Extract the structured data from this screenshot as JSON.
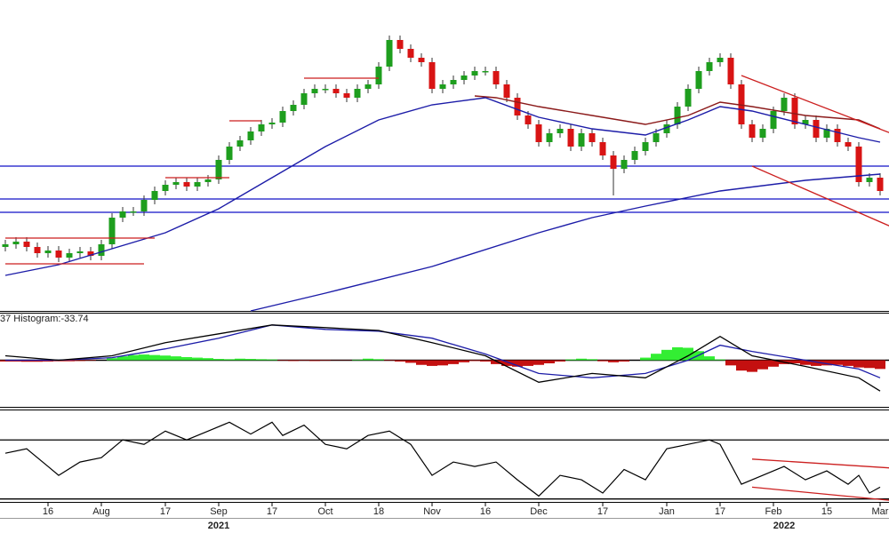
{
  "chart_data": [
    {
      "type": "candlestick",
      "ylim": [
        0,
        350
      ],
      "up_color": "#1e9e1e",
      "down_color": "#d81414",
      "open": [
        72,
        75,
        78,
        72,
        65,
        68,
        60,
        65,
        67,
        62,
        75,
        105,
        112,
        112,
        125,
        135,
        142,
        145,
        140,
        145,
        148,
        170,
        185,
        192,
        202,
        210,
        212,
        225,
        232,
        245,
        250,
        250,
        245,
        240,
        250,
        255,
        275,
        305,
        295,
        285,
        280,
        250,
        255,
        260,
        265,
        270,
        270,
        255,
        240,
        220,
        210,
        190,
        200,
        205,
        185,
        200,
        190,
        175,
        160,
        170,
        180,
        190,
        200,
        210,
        230,
        250,
        270,
        280,
        285,
        255,
        210,
        195,
        205,
        225,
        240,
        210,
        215,
        195,
        205,
        190,
        185,
        145,
        150
      ],
      "high": [
        80,
        83,
        83,
        77,
        73,
        73,
        70,
        72,
        72,
        80,
        110,
        117,
        117,
        130,
        140,
        147,
        150,
        150,
        150,
        153,
        175,
        190,
        197,
        207,
        215,
        217,
        230,
        237,
        250,
        255,
        255,
        255,
        250,
        255,
        260,
        280,
        310,
        310,
        300,
        290,
        285,
        260,
        265,
        270,
        275,
        275,
        275,
        260,
        245,
        225,
        215,
        205,
        210,
        210,
        205,
        205,
        195,
        180,
        175,
        185,
        195,
        205,
        215,
        235,
        255,
        275,
        285,
        290,
        290,
        260,
        215,
        210,
        230,
        245,
        245,
        220,
        220,
        210,
        210,
        195,
        190,
        155,
        155
      ],
      "low": [
        67,
        70,
        67,
        60,
        60,
        55,
        55,
        60,
        57,
        57,
        70,
        100,
        107,
        107,
        120,
        130,
        137,
        135,
        135,
        140,
        143,
        165,
        180,
        187,
        197,
        205,
        207,
        220,
        227,
        240,
        245,
        240,
        235,
        235,
        245,
        250,
        270,
        290,
        280,
        275,
        245,
        245,
        250,
        255,
        260,
        265,
        250,
        235,
        215,
        205,
        185,
        185,
        195,
        180,
        180,
        185,
        170,
        130,
        155,
        165,
        175,
        185,
        195,
        205,
        225,
        245,
        265,
        275,
        250,
        205,
        190,
        190,
        200,
        220,
        205,
        205,
        190,
        190,
        185,
        180,
        140,
        140,
        130
      ],
      "close": [
        75,
        78,
        72,
        65,
        68,
        60,
        65,
        67,
        62,
        75,
        105,
        112,
        112,
        125,
        135,
        142,
        145,
        140,
        145,
        148,
        170,
        185,
        192,
        202,
        210,
        212,
        225,
        232,
        245,
        250,
        250,
        245,
        240,
        250,
        255,
        275,
        305,
        295,
        285,
        280,
        250,
        255,
        260,
        265,
        270,
        270,
        255,
        240,
        220,
        210,
        190,
        200,
        205,
        185,
        200,
        190,
        175,
        160,
        170,
        180,
        190,
        200,
        210,
        230,
        250,
        270,
        280,
        285,
        255,
        210,
        195,
        205,
        225,
        240,
        210,
        215,
        195,
        205,
        190,
        185,
        145,
        150,
        135
      ],
      "moving_averages": [
        {
          "color": "#8b1a1a",
          "x": [
            44,
            46,
            50,
            55,
            60,
            64,
            67,
            70,
            75,
            80,
            82
          ],
          "values": [
            242,
            240,
            230,
            220,
            210,
            220,
            235,
            230,
            220,
            215,
            205
          ]
        },
        {
          "color": "#1c1ca8",
          "x": [
            0,
            5,
            10,
            15,
            20,
            25,
            30,
            35,
            40,
            45,
            50,
            55,
            60,
            64,
            67,
            70,
            75,
            80,
            82
          ],
          "values": [
            40,
            52,
            70,
            88,
            115,
            150,
            185,
            215,
            232,
            240,
            218,
            205,
            198,
            215,
            230,
            225,
            210,
            195,
            190
          ]
        },
        {
          "color": "#1c1ca8",
          "x": [
            23,
            30,
            40,
            50,
            55,
            60,
            67,
            75,
            82
          ],
          "values": [
            0,
            20,
            50,
            88,
            105,
            118,
            135,
            147,
            154
          ]
        }
      ],
      "levels": [
        163,
        126,
        111
      ],
      "level_color": "#1010c8",
      "trendline_color": "#cc1f1f",
      "trendlines": [
        {
          "x": [
            0,
            14
          ],
          "values": [
            82,
            82
          ]
        },
        {
          "x": [
            0,
            13
          ],
          "values": [
            53,
            53
          ]
        },
        {
          "x": [
            15,
            21
          ],
          "values": [
            150,
            150
          ]
        },
        {
          "x": [
            21,
            24
          ],
          "values": [
            214,
            214
          ]
        },
        {
          "x": [
            28,
            35
          ],
          "values": [
            262,
            262
          ]
        },
        {
          "x": [
            69,
            83
          ],
          "values": [
            265,
            200
          ]
        },
        {
          "x": [
            70,
            83
          ],
          "values": [
            163,
            95
          ]
        }
      ]
    },
    {
      "type": "macd",
      "label": "37 Histogram:-33.74",
      "ylim": [
        -180,
        180
      ],
      "positive_color": "#33ee33",
      "negative_color": "#c41010",
      "histogram": [
        -5,
        -5,
        -6,
        -6,
        -5,
        -4,
        -4,
        -3,
        -2,
        0,
        8,
        15,
        20,
        22,
        20,
        18,
        15,
        12,
        10,
        8,
        5,
        4,
        6,
        5,
        4,
        3,
        -2,
        -3,
        -2,
        -3,
        -2,
        -1,
        -1,
        2,
        6,
        4,
        -2,
        -5,
        -10,
        -18,
        -22,
        -20,
        -15,
        -8,
        -3,
        -5,
        -15,
        -22,
        -25,
        -22,
        -18,
        -12,
        -5,
        3,
        6,
        4,
        -4,
        -8,
        -5,
        0,
        10,
        25,
        40,
        50,
        48,
        35,
        15,
        3,
        -20,
        -40,
        -45,
        -35,
        -25,
        -15,
        -12,
        -18,
        -22,
        -20,
        -18,
        -22,
        -28,
        -30,
        -33.74
      ],
      "macd": {
        "color": "#000000",
        "x": [
          0,
          5,
          10,
          15,
          20,
          25,
          30,
          35,
          40,
          45,
          50,
          55,
          60,
          64,
          67,
          70,
          75,
          80,
          82
        ],
        "values": [
          17,
          0,
          17,
          68,
          102,
          136,
          126,
          115,
          68,
          17,
          -85,
          -51,
          -68,
          17,
          92,
          17,
          -24,
          -68,
          -119
        ]
      },
      "signal": {
        "color": "#1c1ca8",
        "x": [
          0,
          5,
          10,
          15,
          20,
          25,
          30,
          35,
          40,
          45,
          50,
          55,
          60,
          64,
          67,
          70,
          75,
          80,
          82
        ],
        "values": [
          0,
          0,
          10,
          44,
          85,
          136,
          119,
          112,
          85,
          24,
          -51,
          -68,
          -51,
          0,
          58,
          34,
          0,
          -34,
          -68
        ]
      }
    },
    {
      "type": "line",
      "ylim": [
        28,
        90
      ],
      "levels": [
        70,
        30
      ],
      "level_color": "#000000",
      "series": [
        {
          "color": "#000000",
          "x": [
            0,
            2,
            4,
            5,
            7,
            9,
            11,
            13,
            15,
            17,
            19,
            21,
            23,
            25,
            26,
            28,
            30,
            32,
            34,
            36,
            38,
            40,
            42,
            44,
            46,
            48,
            50,
            52,
            54,
            56,
            58,
            60,
            62,
            64,
            66,
            67,
            69,
            71,
            73,
            75,
            77,
            79,
            80,
            81,
            82
          ],
          "values": [
            61,
            64,
            52,
            46,
            55,
            58,
            70,
            67,
            76,
            70,
            76,
            82,
            74,
            82,
            73,
            80,
            67,
            64,
            73,
            76,
            67,
            46,
            55,
            52,
            55,
            43,
            32,
            46,
            43,
            34,
            50,
            43,
            64,
            67,
            70,
            67,
            40,
            46,
            52,
            43,
            49,
            40,
            46,
            34,
            38
          ]
        }
      ],
      "trendline_color": "#cc1f1f",
      "trendlines": [
        {
          "x": [
            70,
            83
          ],
          "values": [
            57,
            51
          ]
        },
        {
          "x": [
            70,
            83
          ],
          "values": [
            38,
            29
          ]
        }
      ],
      "categories": [
        null,
        null,
        null,
        null,
        "16",
        null,
        null,
        null,
        null,
        "Aug",
        null,
        null,
        null,
        null,
        null,
        "17",
        null,
        null,
        null,
        null,
        "Sep",
        null,
        null,
        null,
        null,
        "17",
        null,
        null,
        null,
        null,
        "Oct",
        null,
        null,
        null,
        null,
        "18",
        null,
        null,
        null,
        null,
        "Nov",
        null,
        null,
        null,
        null,
        "16",
        null,
        null,
        null,
        null,
        "Dec",
        null,
        null,
        null,
        null,
        null,
        "17",
        null,
        null,
        null,
        null,
        null,
        "Jan",
        null,
        null,
        null,
        null,
        "17",
        null,
        null,
        null,
        null,
        "Feb",
        null,
        null,
        null,
        null,
        "15",
        null,
        null,
        null,
        null,
        "Mar"
      ],
      "year_labels": [
        "2021",
        "2022"
      ]
    }
  ]
}
